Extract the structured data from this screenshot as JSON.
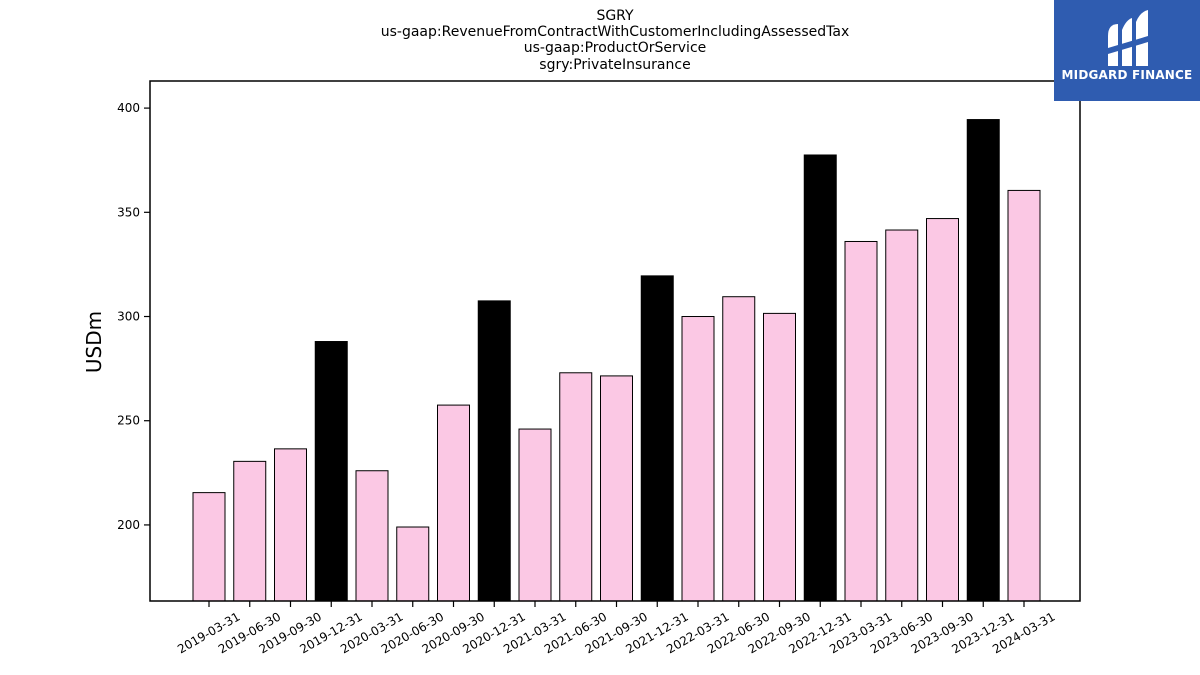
{
  "chart_data": {
    "type": "bar",
    "title_lines": [
      "SGRY",
      "us-gaap:RevenueFromContractWithCustomerIncludingAssessedTax",
      "us-gaap:ProductOrService",
      "sgry:PrivateInsurance"
    ],
    "xlabel": "",
    "ylabel": "USDm",
    "categories": [
      "2019-03-31",
      "2019-06-30",
      "2019-09-30",
      "2019-12-31",
      "2020-03-31",
      "2020-06-30",
      "2020-09-30",
      "2020-12-31",
      "2021-03-31",
      "2021-06-30",
      "2021-09-30",
      "2021-12-31",
      "2022-03-31",
      "2022-06-30",
      "2022-09-30",
      "2022-12-31",
      "2023-03-31",
      "2023-06-30",
      "2023-09-30",
      "2023-12-31",
      "2024-03-31"
    ],
    "values": [
      215.5,
      230.5,
      236.5,
      288.0,
      226.0,
      199.0,
      257.5,
      307.5,
      246.0,
      273.0,
      271.5,
      319.5,
      300.0,
      309.5,
      301.5,
      377.5,
      336.0,
      341.5,
      347.0,
      394.5,
      360.5
    ],
    "highlight": [
      false,
      false,
      false,
      true,
      false,
      false,
      false,
      true,
      false,
      false,
      false,
      true,
      false,
      false,
      false,
      true,
      false,
      false,
      false,
      true,
      false
    ],
    "ylim": [
      163.5,
      413
    ],
    "yticks": [
      200,
      250,
      300,
      350,
      400
    ],
    "grid": false,
    "colors": {
      "bar": "#fbc8e4",
      "highlight": "#000000",
      "edge": "#000000"
    }
  },
  "logo": {
    "text": "MIDGARD FINANCE",
    "color": "#2f5cb0"
  }
}
